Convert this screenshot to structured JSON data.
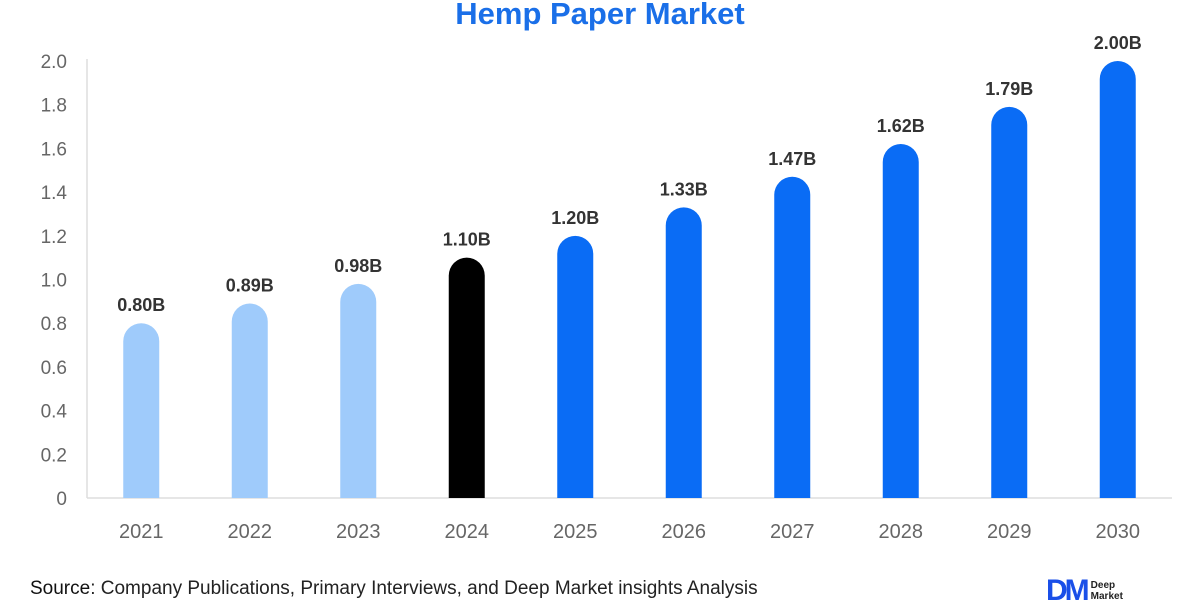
{
  "chart_data": {
    "type": "bar",
    "title": "Hemp Paper Market",
    "categories": [
      "2021",
      "2022",
      "2023",
      "2024",
      "2025",
      "2026",
      "2027",
      "2028",
      "2029",
      "2030"
    ],
    "values": [
      0.8,
      0.89,
      0.98,
      1.1,
      1.2,
      1.33,
      1.47,
      1.62,
      1.79,
      2.0
    ],
    "data_labels": [
      "0.80B",
      "0.89B",
      "0.98B",
      "1.10B",
      "1.20B",
      "1.33B",
      "1.47B",
      "1.62B",
      "1.79B",
      "2.00B"
    ],
    "bar_colors": [
      "#9fcbfb",
      "#9fcbfb",
      "#9fcbfb",
      "#000000",
      "#0a6cf5",
      "#0a6cf5",
      "#0a6cf5",
      "#0a6cf5",
      "#0a6cf5",
      "#0a6cf5"
    ],
    "ylim": [
      0,
      2.0
    ],
    "yticks": [
      "0",
      "0.2",
      "0.4",
      "0.6",
      "0.8",
      "1.0",
      "1.2",
      "1.4",
      "1.6",
      "1.8",
      "2.0"
    ],
    "grid": false,
    "legend": "none"
  },
  "footer": {
    "source_label": "Source",
    "source_text": ": Company Publications, Primary Interviews, and Deep Market insights Analysis",
    "logo_mark": "DM",
    "logo_text_1": "Deep",
    "logo_text_2": "Market"
  }
}
